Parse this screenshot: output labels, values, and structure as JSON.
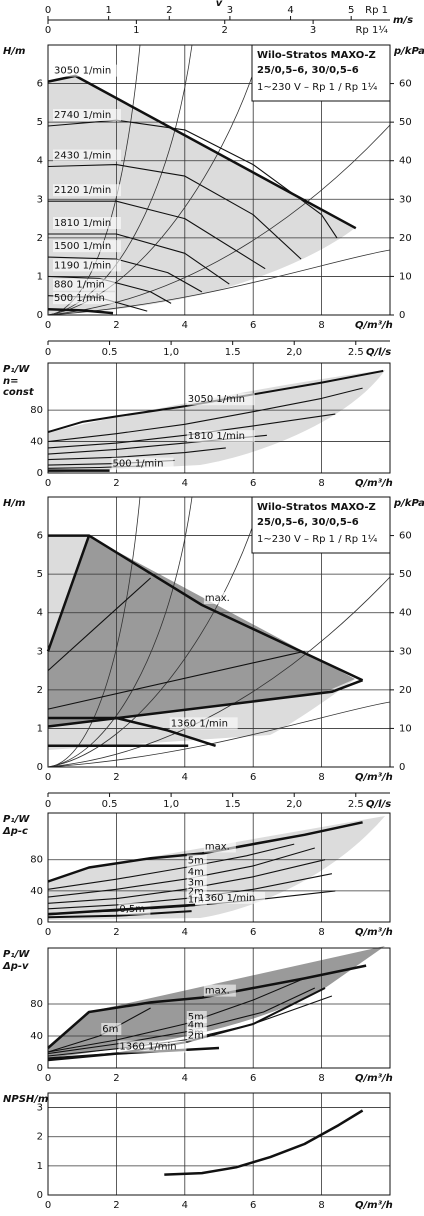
{
  "chart_data": [
    {
      "type": "line",
      "title": "Wilo-Stratos MAXO-Z",
      "subtitle": "25/0,5–6, 30/0,5–6",
      "annotation": "1~230 V – Rp 1 / Rp 1¼",
      "ylabel": "H/m",
      "y2label": "p/kPa",
      "xlabel": "Q/m³/h",
      "x2label": "Q/l/s",
      "grid": true,
      "line_color": "#111",
      "xlim": [
        0,
        10
      ],
      "xticks": [
        0,
        2,
        4,
        6,
        8
      ],
      "ylim": [
        0,
        7
      ],
      "yticks": [
        0,
        1,
        2,
        3,
        4,
        5,
        6
      ],
      "y2lim": [
        0,
        70
      ],
      "y2ticks": [
        0,
        10,
        20,
        30,
        40,
        50,
        60
      ],
      "x2lim": [
        0,
        2.778
      ],
      "x2ticks": [
        0,
        0.5,
        {
          "value": 1,
          "label": "1,0"
        },
        1.5,
        {
          "value": 2,
          "label": "2,0"
        },
        2.5
      ],
      "v_axis": {
        "label": "v",
        "unit": "m/s",
        "rows": [
          {
            "name": "Rp 1",
            "xlim": [
              0,
              5.64
            ],
            "ticks": [
              0,
              1,
              2,
              3,
              4,
              5
            ]
          },
          {
            "name": "Rp 1¼",
            "xlim": [
              0,
              3.87
            ],
            "ticks": [
              0,
              1,
              2,
              3
            ]
          }
        ]
      },
      "series": [
        {
          "name": "3050 1/min",
          "lw": 2.5,
          "x": [
            0,
            0.8,
            9.0
          ],
          "values": [
            6.05,
            6.2,
            2.25
          ]
        },
        {
          "name": "2740 1/min",
          "x": [
            0,
            2,
            4,
            6,
            8,
            8.45
          ],
          "values": [
            4.9,
            5.05,
            4.8,
            3.9,
            2.6,
            2.0
          ]
        },
        {
          "name": "2430 1/min",
          "x": [
            0,
            2,
            4,
            6,
            7.4
          ],
          "values": [
            3.85,
            3.9,
            3.6,
            2.6,
            1.45
          ]
        },
        {
          "name": "2120 1/min",
          "x": [
            0,
            2,
            4,
            6.35
          ],
          "values": [
            2.95,
            2.95,
            2.5,
            1.2
          ]
        },
        {
          "name": "1810 1/min",
          "x": [
            0,
            2,
            4,
            5.3
          ],
          "values": [
            2.1,
            2.1,
            1.6,
            0.8
          ]
        },
        {
          "name": "1500 1/min",
          "x": [
            0,
            2,
            3.5,
            4.5
          ],
          "values": [
            1.5,
            1.45,
            1.1,
            0.6
          ]
        },
        {
          "name": "1190 1/min",
          "x": [
            0,
            1.5,
            3,
            3.6
          ],
          "values": [
            1.0,
            0.95,
            0.6,
            0.3
          ]
        },
        {
          "name": "880 1/min",
          "x": [
            0,
            1.5,
            2.9
          ],
          "values": [
            0.5,
            0.45,
            0.1
          ]
        },
        {
          "name": "500 1/min",
          "lw": 2.5,
          "x": [
            0,
            1,
            1.9
          ],
          "values": [
            0.15,
            0.12,
            0.05
          ]
        }
      ]
    },
    {
      "type": "line",
      "ylabel": "P₁/W",
      "ylabel_note": [
        "n=",
        "const"
      ],
      "xlabel": "Q/m³/h",
      "grid": true,
      "line_color": "#111",
      "xlim": [
        0,
        10
      ],
      "xticks": [
        0,
        2,
        4,
        6,
        8
      ],
      "ylim": [
        0,
        140
      ],
      "yticks": [
        0,
        40,
        80
      ],
      "series": [
        {
          "name": "3050 1/min",
          "lw": 2,
          "x": [
            0,
            1,
            2,
            4,
            6,
            8,
            9.8
          ],
          "values": [
            52,
            65,
            72,
            85,
            100,
            115,
            130
          ]
        },
        {
          "x": [
            0,
            2,
            4,
            6,
            8,
            9.2
          ],
          "values": [
            40,
            50,
            62,
            78,
            95,
            108
          ]
        },
        {
          "x": [
            0,
            2,
            4,
            6,
            8.4
          ],
          "values": [
            32,
            38,
            48,
            60,
            75
          ]
        },
        {
          "name": "1810 1/min",
          "x": [
            0,
            2,
            4,
            6.4
          ],
          "values": [
            24,
            30,
            38,
            48
          ]
        },
        {
          "x": [
            0,
            2,
            4,
            5.2
          ],
          "values": [
            17,
            20,
            26,
            32
          ]
        },
        {
          "x": [
            0,
            2,
            3.7
          ],
          "values": [
            10,
            12,
            16
          ]
        },
        {
          "x": [
            0,
            1.5,
            2.8
          ],
          "values": [
            6,
            7,
            9
          ]
        },
        {
          "name": "500 1/min",
          "lw": 2.5,
          "x": [
            0,
            1.8
          ],
          "values": [
            3,
            3
          ]
        }
      ]
    },
    {
      "type": "line",
      "title": "Wilo-Stratos MAXO-Z",
      "subtitle": "25/0,5–6, 30/0,5–6",
      "annotation": "1~230 V – Rp 1 / Rp 1¼",
      "ylabel": "H/m",
      "y2label": "p/kPa",
      "xlabel": "Q/m³/h",
      "x2label": "Q/l/s",
      "grid": true,
      "line_color": "#111",
      "xlim": [
        0,
        10
      ],
      "xticks": [
        0,
        2,
        4,
        6,
        8
      ],
      "ylim": [
        0,
        7
      ],
      "yticks": [
        0,
        1,
        2,
        3,
        4,
        5,
        6
      ],
      "y2lim": [
        0,
        70
      ],
      "y2ticks": [
        0,
        10,
        20,
        30,
        40,
        50,
        60
      ],
      "x2lim": [
        0,
        2.778
      ],
      "x2ticks": [
        0,
        0.5,
        {
          "value": 1,
          "label": "1,0"
        },
        1.5,
        {
          "value": 2,
          "label": "2,0"
        },
        2.5
      ],
      "series": [
        {
          "name": "max.",
          "lw": 2.5,
          "x": [
            0,
            1.2,
            4.5,
            9.2
          ],
          "values": [
            6,
            6,
            4.2,
            2.25
          ]
        },
        {
          "lw": 2.5,
          "x": [
            0,
            1.2
          ],
          "values": [
            3,
            6
          ]
        },
        {
          "lw": 2.5,
          "x": [
            0,
            8.3,
            9.2
          ],
          "values": [
            1.05,
            1.95,
            2.25
          ]
        },
        {
          "x": [
            0,
            3.0
          ],
          "values": [
            2.5,
            4.9
          ]
        },
        {
          "x": [
            0,
            7.5
          ],
          "values": [
            1.5,
            3.0
          ]
        },
        {
          "name": "1360 1/min",
          "lw": 2.5,
          "x": [
            0,
            2,
            3.5,
            4.9
          ],
          "values": [
            1.27,
            1.27,
            0.95,
            0.55
          ]
        },
        {
          "lw": 2.5,
          "x": [
            0,
            4.1
          ],
          "values": [
            0.55,
            0.55
          ]
        }
      ]
    },
    {
      "type": "line",
      "ylabel": "P₁/W",
      "ylabel_note": [
        "Δp-c"
      ],
      "xlabel": "Q/m³/h",
      "grid": true,
      "line_color": "#111",
      "xlim": [
        0,
        10
      ],
      "xticks": [
        0,
        2,
        4,
        6,
        8
      ],
      "ylim": [
        0,
        140
      ],
      "yticks": [
        0,
        40,
        80
      ],
      "series": [
        {
          "name": "max.",
          "lw": 2.5,
          "x": [
            0,
            1.2,
            3,
            4.5,
            6,
            7.5,
            9.2
          ],
          "values": [
            52,
            70,
            82,
            88,
            100,
            112,
            128
          ]
        },
        {
          "name": "5m",
          "x": [
            0,
            2,
            4,
            5.8,
            7.2
          ],
          "values": [
            42,
            55,
            70,
            85,
            100
          ]
        },
        {
          "name": "4m",
          "x": [
            0,
            2,
            4,
            6,
            7.8
          ],
          "values": [
            32,
            42,
            55,
            72,
            95
          ]
        },
        {
          "name": "3m",
          "x": [
            0,
            2,
            4,
            6,
            8.1
          ],
          "values": [
            24,
            30,
            42,
            58,
            80
          ]
        },
        {
          "name": "2m",
          "x": [
            0,
            2,
            4,
            6,
            8.3
          ],
          "values": [
            17,
            22,
            30,
            42,
            62
          ]
        },
        {
          "name": "1m",
          "x": [
            0,
            2,
            4,
            6,
            8.4
          ],
          "values": [
            11,
            14,
            20,
            28,
            40
          ]
        },
        {
          "name": "0,5m",
          "lw": 2,
          "x": [
            0,
            2,
            4.2
          ],
          "values": [
            6,
            8,
            14
          ]
        },
        {
          "name": "1360 1/min",
          "lw": 2.5,
          "x": [
            0,
            4.3
          ],
          "values": [
            10,
            22
          ]
        }
      ]
    },
    {
      "type": "line",
      "ylabel": "P₁/W",
      "ylabel_note": [
        "Δp-v"
      ],
      "xlabel": "Q/m³/h",
      "grid": true,
      "line_color": "#111",
      "xlim": [
        0,
        10
      ],
      "xticks": [
        0,
        2,
        4,
        6,
        8
      ],
      "ylim": [
        0,
        150
      ],
      "yticks": [
        0,
        40,
        80
      ],
      "series": [
        {
          "name": "max.",
          "lw": 2.5,
          "x": [
            0,
            1.2,
            3,
            4.5,
            6,
            7.5,
            9.3
          ],
          "values": [
            25,
            70,
            82,
            88,
            100,
            112,
            128
          ]
        },
        {
          "name": "6m",
          "x": [
            0,
            1.5,
            3
          ],
          "values": [
            20,
            40,
            75
          ]
        },
        {
          "name": "5m",
          "x": [
            0,
            2,
            4,
            6,
            7.5
          ],
          "values": [
            20,
            35,
            55,
            85,
            112
          ]
        },
        {
          "name": "4m",
          "x": [
            0,
            2,
            4,
            6.3,
            7.8
          ],
          "values": [
            18,
            30,
            45,
            70,
            100
          ]
        },
        {
          "name": "3m",
          "x": [
            0,
            2,
            4,
            6,
            8.3
          ],
          "values": [
            15,
            24,
            35,
            55,
            90
          ]
        },
        {
          "name": "2m",
          "lw": 2,
          "x": [
            0,
            2,
            4,
            6,
            8.1
          ],
          "values": [
            12,
            18,
            32,
            55,
            100
          ]
        },
        {
          "name": "1360 1/min",
          "lw": 2.5,
          "x": [
            0,
            2,
            5
          ],
          "values": [
            10,
            18,
            25
          ]
        }
      ]
    },
    {
      "type": "line",
      "ylabel": "NPSH/m",
      "xlabel": "Q/m³/h",
      "grid": true,
      "line_color": "#111",
      "xlim": [
        0,
        10
      ],
      "xticks": [
        0,
        2,
        4,
        6,
        8
      ],
      "ylim": [
        0,
        3.5
      ],
      "yticks": [
        0,
        1,
        2,
        3
      ],
      "series": [
        {
          "lw": 2.5,
          "x": [
            3.4,
            4.5,
            5.5,
            6.5,
            7.5,
            8.5,
            9.2
          ],
          "values": [
            0.7,
            0.75,
            0.95,
            1.3,
            1.75,
            2.4,
            2.9
          ]
        }
      ]
    }
  ]
}
